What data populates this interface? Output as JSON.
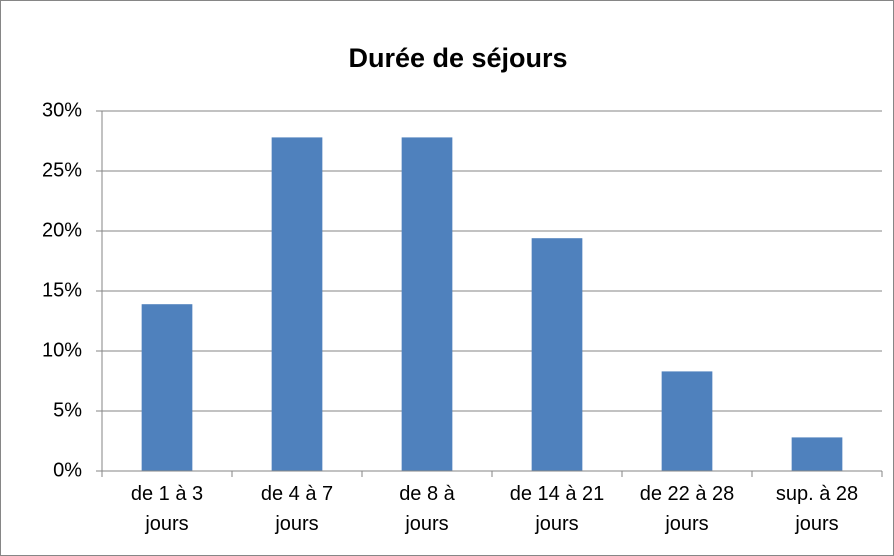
{
  "chart_data": {
    "type": "bar",
    "title": "Durée de séjours",
    "categories": [
      "de 1 à 3 jours",
      "de 4 à 7 jours",
      "de 8 à jours",
      "de 14 à 21 jours",
      "de 22 à 28 jours",
      "sup. à 28 jours"
    ],
    "values": [
      13.9,
      27.8,
      27.8,
      19.4,
      8.3,
      2.8
    ],
    "color": "#4f81bd",
    "ylim": [
      0,
      30
    ],
    "yticks": [
      {
        "value": 0,
        "label": "0%"
      },
      {
        "value": 5,
        "label": "5%"
      },
      {
        "value": 10,
        "label": "10%"
      },
      {
        "value": 15,
        "label": "15%"
      },
      {
        "value": 20,
        "label": "20%"
      },
      {
        "value": 25,
        "label": "25%"
      },
      {
        "value": 30,
        "label": "30%"
      }
    ],
    "grid": true
  }
}
